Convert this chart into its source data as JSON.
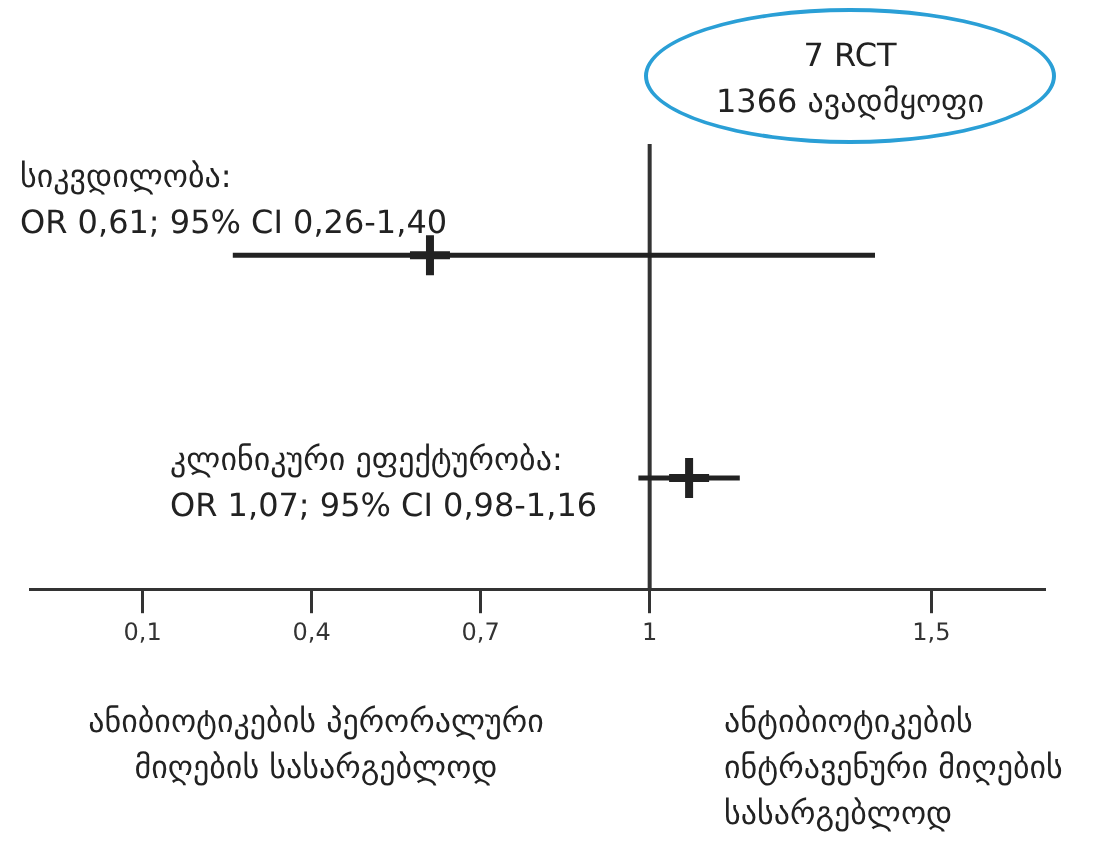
{
  "chart_data": {
    "type": "scatter",
    "orientation": "horizontal",
    "categories": [
      null,
      null
    ],
    "values": [
      0.61,
      1.07
    ],
    "errors": [
      [
        0.26,
        1.4
      ],
      [
        0.98,
        1.16
      ]
    ],
    "color": "#222222",
    "marker": "cross",
    "xlim": [
      -0.1,
      1.7
    ],
    "xticks": [
      {
        "value": 0.1,
        "label": "0,1"
      },
      {
        "value": 0.4,
        "label": "0,4"
      },
      {
        "value": 0.7,
        "label": "0,7"
      },
      {
        "value": 1,
        "label": "1"
      },
      {
        "value": 1.5,
        "label": "1,5"
      }
    ],
    "ref_lines": [
      {
        "axis": "x",
        "value": 1,
        "label": null
      }
    ],
    "annotations": [
      "სიკვდილობა:\nOR 0,61; 95% CI 0,26-1,40",
      "კლინიკური ეფექტურობა:\nOR 1,07; 95% CI 0,98-1,16",
      "7 RCT\n1366 ავადმყოფი",
      "ანიბიოტიკების პერორალური\nმიღების სასარგებლოდ",
      "ანტიბიოტიკების\nინტრავენური მიღების\nსასარგებლოდ"
    ],
    "grid": false,
    "legend": false
  }
}
